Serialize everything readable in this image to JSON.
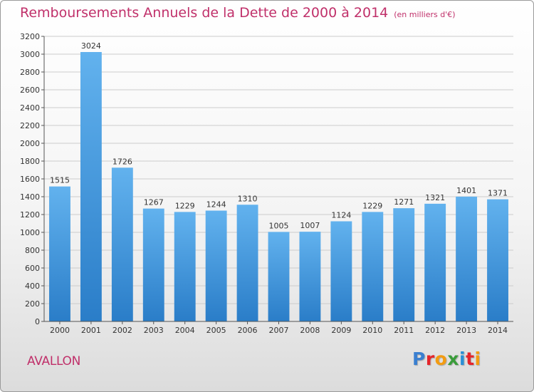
{
  "header": {
    "title": "Remboursements Annuels de la Dette de 2000 à 2014",
    "subtitle": "(en milliers d'€)"
  },
  "footer": {
    "commune": "AVALLON",
    "logo_text": "Proxiti",
    "logo_colors": [
      "#3a7fd0",
      "#e5252b",
      "#f39c12",
      "#3a9c3a",
      "#2a8fd6",
      "#e5252b",
      "#f39c12"
    ]
  },
  "colors": {
    "title": "#c0306a",
    "bar_top": "#62b2ee",
    "bar_bottom": "#2a7dc8",
    "grid": "#cccccc",
    "axis": "#555555"
  },
  "chart_data": {
    "type": "bar",
    "title": "Remboursements Annuels de la Dette de 2000 à 2014",
    "subtitle": "(en milliers d'€)",
    "categories": [
      "2000",
      "2001",
      "2002",
      "2003",
      "2004",
      "2005",
      "2006",
      "2007",
      "2008",
      "2009",
      "2010",
      "2011",
      "2012",
      "2013",
      "2014"
    ],
    "values": [
      1515,
      3024,
      1726,
      1267,
      1229,
      1244,
      1310,
      1005,
      1007,
      1124,
      1229,
      1271,
      1321,
      1401,
      1371
    ],
    "ylim": [
      0,
      3200
    ],
    "ytick_step": 200,
    "grid": true,
    "xlabel": "",
    "ylabel": ""
  }
}
